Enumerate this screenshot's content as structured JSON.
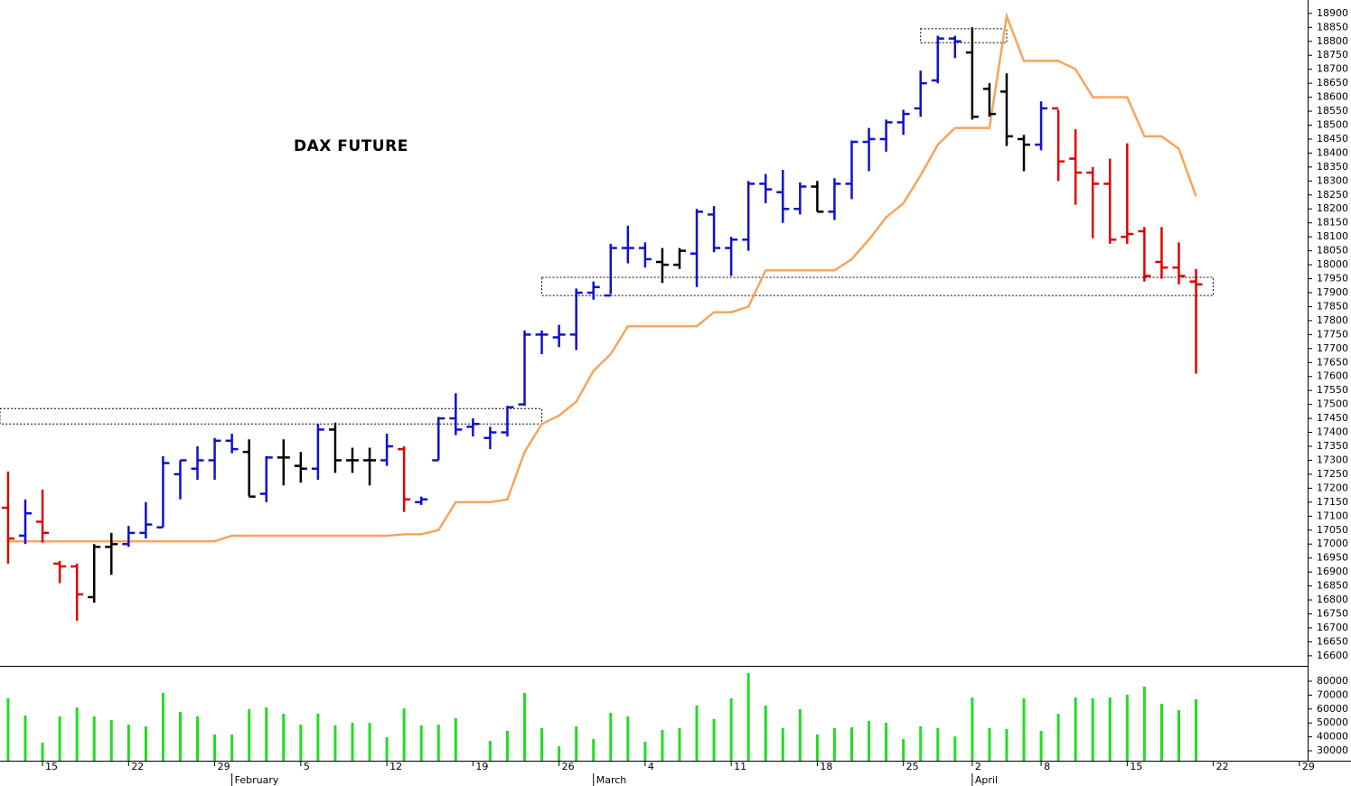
{
  "chart_data": [
    {
      "type": "ohlc",
      "title": "DAX FUTURE",
      "open": [
        17130,
        17030,
        17080,
        16930,
        16920,
        16810,
        16990,
        17000,
        17040,
        17060,
        17250,
        17270,
        17300,
        17370,
        17330,
        17180,
        17310,
        17280,
        17270,
        17410,
        17300,
        17300,
        17300,
        17340,
        17150,
        17300,
        17450,
        17420,
        17380,
        17400,
        17500,
        17750,
        17740,
        17750,
        17900,
        17890,
        18060,
        18060,
        18010,
        18000,
        18040,
        18180,
        18060,
        18090,
        18290,
        18260,
        18200,
        18280,
        18190,
        18290,
        18440,
        18450,
        18510,
        18560,
        18660,
        18810,
        18760,
        18630,
        18620,
        18450,
        18430,
        18560,
        18380,
        18330,
        18290,
        18100,
        18120,
        18010,
        17990,
        17940
      ],
      "high": [
        17260,
        17160,
        17195,
        16940,
        16930,
        17000,
        17040,
        17065,
        17150,
        17315,
        17300,
        17350,
        17380,
        17395,
        17375,
        17315,
        17375,
        17330,
        17430,
        17435,
        17345,
        17345,
        17395,
        17350,
        17170,
        17455,
        17540,
        17450,
        17420,
        17495,
        17765,
        17765,
        17785,
        17915,
        17940,
        18075,
        18140,
        18080,
        18060,
        18060,
        18200,
        18210,
        18100,
        18300,
        18325,
        18340,
        18295,
        18300,
        18310,
        18445,
        18490,
        18520,
        18555,
        18695,
        18820,
        18820,
        18850,
        18650,
        18685,
        18465,
        18585,
        18555,
        18485,
        18350,
        18380,
        18435,
        18135,
        18135,
        18080,
        17985
      ],
      "low": [
        16930,
        17000,
        17005,
        16860,
        16725,
        16790,
        16890,
        16990,
        17020,
        17060,
        17160,
        17230,
        17230,
        17325,
        17170,
        17150,
        17210,
        17220,
        17230,
        17255,
        17255,
        17210,
        17280,
        17115,
        17140,
        17300,
        17390,
        17385,
        17340,
        17385,
        17495,
        17680,
        17705,
        17695,
        17875,
        17895,
        18005,
        17990,
        17935,
        17985,
        17920,
        18045,
        17960,
        18050,
        18220,
        18150,
        18180,
        18190,
        18160,
        18235,
        18335,
        18405,
        18465,
        18530,
        18650,
        18740,
        18520,
        18530,
        18425,
        18335,
        18410,
        18300,
        18215,
        18095,
        18075,
        18075,
        17940,
        17950,
        17930,
        17610
      ],
      "close": [
        17020,
        17110,
        17040,
        16920,
        16820,
        16990,
        17000,
        17040,
        17070,
        17290,
        17300,
        17300,
        17370,
        17340,
        17170,
        17310,
        17310,
        17270,
        17410,
        17300,
        17300,
        17300,
        17350,
        17160,
        17160,
        17450,
        17410,
        17430,
        17400,
        17490,
        17750,
        17750,
        17750,
        17900,
        17920,
        18060,
        18060,
        18020,
        18000,
        18050,
        18190,
        18060,
        18090,
        18290,
        18270,
        18200,
        18280,
        18190,
        18290,
        18440,
        18450,
        18510,
        18540,
        18650,
        18810,
        18800,
        18530,
        18540,
        18460,
        18430,
        18560,
        18370,
        18330,
        18290,
        18090,
        18110,
        17960,
        17990,
        17960,
        17930
      ],
      "bar_colors": [
        "#e00000",
        "#1010d0",
        "#e00000",
        "#e00000",
        "#e00000",
        "#000000",
        "#000000",
        "#1010d0",
        "#1010d0",
        "#1010d0",
        "#1010d0",
        "#1010d0",
        "#1010d0",
        "#1010d0",
        "#000000",
        "#1010d0",
        "#000000",
        "#000000",
        "#1010d0",
        "#000000",
        "#000000",
        "#000000",
        "#1010d0",
        "#e00000",
        "#1010d0",
        "#1010d0",
        "#1010d0",
        "#1010d0",
        "#1010d0",
        "#1010d0",
        "#1010d0",
        "#1010d0",
        "#1010d0",
        "#1010d0",
        "#1010d0",
        "#1010d0",
        "#1010d0",
        "#1010d0",
        "#000000",
        "#000000",
        "#1010d0",
        "#1010d0",
        "#1010d0",
        "#1010d0",
        "#1010d0",
        "#1010d0",
        "#1010d0",
        "#000000",
        "#1010d0",
        "#1010d0",
        "#1010d0",
        "#1010d0",
        "#1010d0",
        "#1010d0",
        "#1010d0",
        "#1010d0",
        "#000000",
        "#000000",
        "#000000",
        "#000000",
        "#1010d0",
        "#e00000",
        "#e00000",
        "#e00000",
        "#e00000",
        "#e00000",
        "#e00000",
        "#e00000",
        "#e00000",
        "#e00000"
      ],
      "line": {
        "color": "#f7a45c",
        "values": [
          17010,
          17010,
          17010,
          17010,
          17010,
          17010,
          17010,
          17010,
          17010,
          17010,
          17010,
          17010,
          17010,
          17030,
          17030,
          17030,
          17030,
          17030,
          17030,
          17030,
          17030,
          17030,
          17030,
          17035,
          17035,
          17050,
          17150,
          17150,
          17150,
          17160,
          17330,
          17430,
          17460,
          17510,
          17620,
          17680,
          17780,
          17780,
          17780,
          17780,
          17780,
          17830,
          17830,
          17850,
          17980,
          17980,
          17980,
          17980,
          17980,
          18020,
          18090,
          18170,
          18220,
          18320,
          18430,
          18490,
          18490,
          18490,
          18890,
          18730,
          18730,
          18730,
          18700,
          18600,
          18600,
          18600,
          18460,
          18460,
          18415,
          18245
        ]
      },
      "boxes": [
        {
          "start": -0.47,
          "end": 31,
          "low": 17430,
          "high": 17485
        },
        {
          "start": 31,
          "end": 70,
          "low": 17890,
          "high": 17955
        },
        {
          "start": 53,
          "end": 58,
          "low": 18795,
          "high": 18845
        }
      ],
      "xlim": [
        -0.47,
        75.48
      ],
      "xticks": [
        {
          "value": 2,
          "label": "15"
        },
        {
          "value": 7,
          "label": "22"
        },
        {
          "value": 12,
          "label": "29"
        },
        {
          "value": 17,
          "label": "5"
        },
        {
          "value": 22,
          "label": "12"
        },
        {
          "value": 27,
          "label": "19"
        },
        {
          "value": 32,
          "label": "26"
        },
        {
          "value": 37,
          "label": "4"
        },
        {
          "value": 42,
          "label": "11"
        },
        {
          "value": 47,
          "label": "18"
        },
        {
          "value": 52,
          "label": "25"
        },
        {
          "value": 56,
          "label": "2"
        },
        {
          "value": 60,
          "label": "8"
        },
        {
          "value": 65,
          "label": "15"
        },
        {
          "value": 70,
          "label": "22"
        },
        {
          "value": 75,
          "label": "29"
        }
      ],
      "month_ticks": [
        {
          "value": 13,
          "label": "February"
        },
        {
          "value": 34,
          "label": "March"
        },
        {
          "value": 56,
          "label": "April"
        }
      ],
      "ylim": [
        16564,
        18948
      ],
      "yticks": [
        16600,
        16650,
        16700,
        16750,
        16800,
        16850,
        16900,
        16950,
        17000,
        17050,
        17100,
        17150,
        17200,
        17250,
        17300,
        17350,
        17400,
        17450,
        17500,
        17550,
        17600,
        17650,
        17700,
        17750,
        17800,
        17850,
        17900,
        17950,
        18000,
        18050,
        18100,
        18150,
        18200,
        18250,
        18300,
        18350,
        18400,
        18450,
        18500,
        18550,
        18600,
        18650,
        18700,
        18750,
        18800,
        18850,
        18900
      ]
    },
    {
      "type": "bar",
      "color": "#22dd22",
      "values": [
        67700,
        55300,
        35800,
        54700,
        61200,
        54700,
        52100,
        48800,
        47500,
        71600,
        57900,
        54700,
        41700,
        41700,
        59900,
        61200,
        56600,
        48800,
        56600,
        48200,
        50100,
        50100,
        39700,
        60500,
        48200,
        48800,
        53400,
        null,
        37100,
        44300,
        71600,
        46200,
        33200,
        47500,
        38400,
        57300,
        54700,
        36500,
        44900,
        46200,
        62500,
        52700,
        67700,
        85800,
        62500,
        46200,
        59900,
        41700,
        46200,
        46900,
        51400,
        50100,
        38400,
        47500,
        46200,
        40300,
        68300,
        46200,
        45600,
        67700,
        44300,
        56600,
        68300,
        67700,
        68300,
        70300,
        76100,
        63800,
        59200,
        67000
      ],
      "ylim": [
        22860,
        90390
      ],
      "yticks": [
        30000,
        40000,
        50000,
        60000,
        70000,
        80000
      ]
    }
  ]
}
